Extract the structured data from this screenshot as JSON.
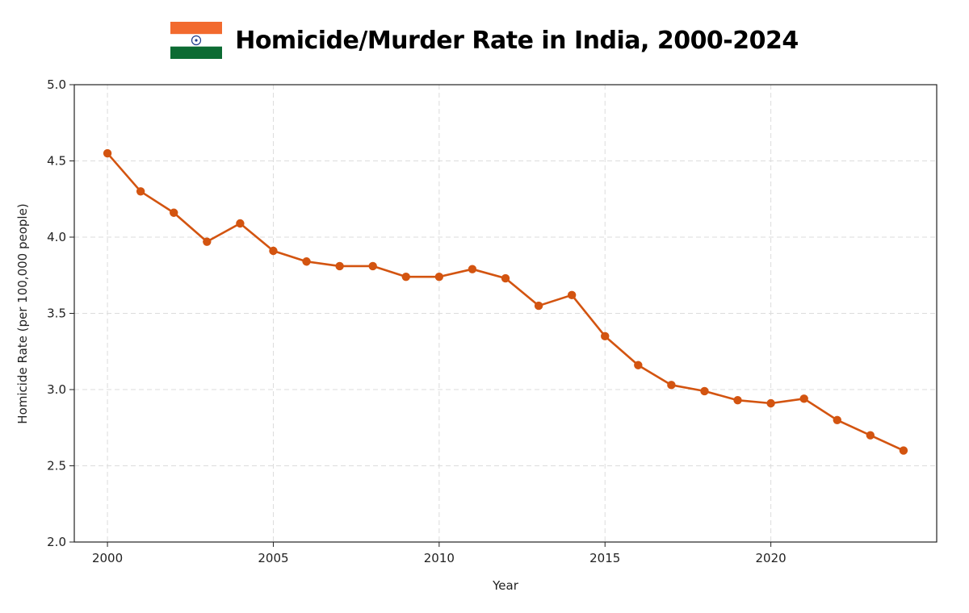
{
  "title": "Homicide/Murder Rate in India, 2000-2024",
  "flag": {
    "icon": "india-flag-icon",
    "colors": {
      "saffron": "#F26A2E",
      "white": "#FFFFFF",
      "green": "#0C6B33",
      "chakra": "#1F3C8C"
    }
  },
  "colors": {
    "line": "#D35410",
    "grid": "#dcdcdc",
    "axis": "#222222"
  },
  "chart_data": {
    "type": "line",
    "title": "Homicide/Murder Rate in India, 2000-2024",
    "xlabel": "Year",
    "ylabel": "Homicide Rate (per 100,000 people)",
    "xlim": [
      1999,
      2025
    ],
    "ylim": [
      2.0,
      5.0
    ],
    "xticks": [
      2000,
      2005,
      2010,
      2015,
      2020
    ],
    "yticks": [
      "2.0",
      "2.5",
      "3.0",
      "3.5",
      "4.0",
      "4.5",
      "5.0"
    ],
    "grid": true,
    "markers": true,
    "x": [
      2000,
      2001,
      2002,
      2003,
      2004,
      2005,
      2006,
      2007,
      2008,
      2009,
      2010,
      2011,
      2012,
      2013,
      2014,
      2015,
      2016,
      2017,
      2018,
      2019,
      2020,
      2021,
      2022,
      2023,
      2024
    ],
    "y": [
      4.55,
      4.3,
      4.16,
      3.97,
      4.09,
      3.91,
      3.84,
      3.81,
      3.81,
      3.74,
      3.74,
      3.79,
      3.73,
      3.55,
      3.62,
      3.35,
      3.16,
      3.03,
      2.99,
      2.93,
      2.91,
      2.94,
      2.8,
      2.7,
      2.6
    ]
  }
}
